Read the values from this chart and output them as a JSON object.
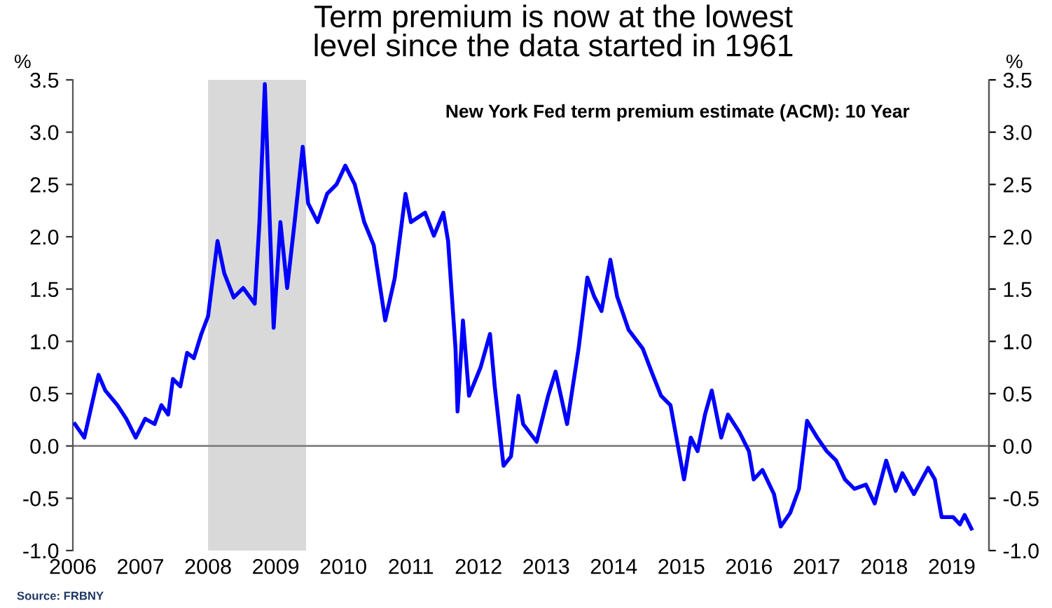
{
  "chart_data": {
    "type": "line",
    "title": "Term premium is now at the lowest\nlevel since the data started in 1961",
    "subtitle": "New York Fed term premium estimate (ACM): 10 Year",
    "ylabel": "%",
    "y2label": "%",
    "annotations": [
      "Source: FRBNY"
    ],
    "x": [
      2006.03,
      2006.17,
      2006.24,
      2006.38,
      2006.48,
      2006.66,
      2006.79,
      2006.93,
      2007.07,
      2007.21,
      2007.31,
      2007.41,
      2007.48,
      2007.59,
      2007.69,
      2007.79,
      2007.9,
      2008.0,
      2008.14,
      2008.24,
      2008.38,
      2008.52,
      2008.69,
      2008.76,
      2008.84,
      2008.88,
      2008.97,
      2009.07,
      2009.17,
      2009.28,
      2009.4,
      2009.48,
      2009.62,
      2009.76,
      2009.9,
      2010.03,
      2010.17,
      2010.31,
      2010.45,
      2010.62,
      2010.76,
      2010.92,
      2011.0,
      2011.21,
      2011.34,
      2011.48,
      2011.55,
      2011.66,
      2011.69,
      2011.77,
      2011.86,
      2012.03,
      2012.17,
      2012.24,
      2012.37,
      2012.48,
      2012.59,
      2012.66,
      2012.86,
      2013.03,
      2013.14,
      2013.31,
      2013.48,
      2013.61,
      2013.71,
      2013.82,
      2013.95,
      2014.05,
      2014.22,
      2014.43,
      2014.56,
      2014.7,
      2014.84,
      2015.04,
      2015.14,
      2015.24,
      2015.35,
      2015.45,
      2015.59,
      2015.69,
      2015.86,
      2016.0,
      2016.07,
      2016.2,
      2016.37,
      2016.47,
      2016.61,
      2016.74,
      2016.86,
      2017.01,
      2017.15,
      2017.29,
      2017.42,
      2017.56,
      2017.73,
      2017.86,
      2018.03,
      2018.17,
      2018.27,
      2018.44,
      2018.65,
      2018.75,
      2018.85,
      2019.02,
      2019.12,
      2019.19,
      2019.29
    ],
    "series": [
      {
        "color": "#0000ff",
        "values": [
          0.21,
          0.08,
          0.28,
          0.68,
          0.53,
          0.39,
          0.26,
          0.08,
          0.26,
          0.21,
          0.39,
          0.3,
          0.64,
          0.57,
          0.89,
          0.84,
          1.07,
          1.24,
          1.96,
          1.65,
          1.42,
          1.51,
          1.36,
          2.14,
          3.46,
          2.72,
          1.13,
          2.14,
          1.51,
          2.14,
          2.86,
          2.32,
          2.14,
          2.41,
          2.5,
          2.68,
          2.5,
          2.14,
          1.92,
          1.2,
          1.6,
          2.41,
          2.14,
          2.23,
          2.01,
          2.23,
          1.96,
          0.93,
          0.33,
          1.2,
          0.48,
          0.75,
          1.07,
          0.57,
          -0.19,
          -0.1,
          0.48,
          0.21,
          0.04,
          0.48,
          0.71,
          0.21,
          0.93,
          1.61,
          1.43,
          1.29,
          1.78,
          1.43,
          1.11,
          0.93,
          0.71,
          0.48,
          0.39,
          -0.32,
          0.08,
          -0.05,
          0.3,
          0.53,
          0.08,
          0.3,
          0.13,
          -0.05,
          -0.32,
          -0.23,
          -0.46,
          -0.77,
          -0.64,
          -0.41,
          0.24,
          0.08,
          -0.05,
          -0.14,
          -0.32,
          -0.41,
          -0.37,
          -0.55,
          -0.14,
          -0.43,
          -0.26,
          -0.46,
          -0.21,
          -0.32,
          -0.68,
          -0.68,
          -0.75,
          -0.66,
          -0.79
        ]
      }
    ],
    "xlim": [
      2006,
      2019.55
    ],
    "xticks": [
      2006,
      2007,
      2008,
      2009,
      2010,
      2011,
      2012,
      2013,
      2014,
      2015,
      2016,
      2017,
      2018,
      2019
    ],
    "ylim": [
      -1.0,
      3.5
    ],
    "yticks": [
      {
        "value": -1.0,
        "label": "-1.0"
      },
      {
        "value": -0.5,
        "label": "-0.5"
      },
      {
        "value": 0,
        "label": "0.0"
      },
      {
        "value": 0.5,
        "label": "0.5"
      },
      {
        "value": 1.0,
        "label": "1.0"
      },
      {
        "value": 1.5,
        "label": "1.5"
      },
      {
        "value": 2.0,
        "label": "2.0"
      },
      {
        "value": 2.5,
        "label": "2.5"
      },
      {
        "value": 3.0,
        "label": "3.0"
      },
      {
        "value": 3.5,
        "label": "3.5"
      }
    ],
    "y2lim": [
      -1.0,
      3.5
    ],
    "y2ticks": [
      {
        "value": -1.0,
        "label": "-1.0"
      },
      {
        "value": -0.5,
        "label": "-0.5"
      },
      {
        "value": 0,
        "label": "0.0"
      },
      {
        "value": 0.5,
        "label": "0.5"
      },
      {
        "value": 1.0,
        "label": "1.0"
      },
      {
        "value": 1.5,
        "label": "1.5"
      },
      {
        "value": 2.0,
        "label": "2.0"
      },
      {
        "value": 2.5,
        "label": "2.5"
      },
      {
        "value": 3.0,
        "label": "3.0"
      },
      {
        "value": 3.5,
        "label": "3.5"
      }
    ],
    "ref_lines": [
      {
        "axis": "y",
        "value": 0,
        "color": "#808080"
      }
    ],
    "bands": [
      {
        "axis": "x",
        "from": 2008.0,
        "to": 2009.45,
        "color": "#d9d9d9"
      }
    ],
    "grid": false,
    "legend": false,
    "marker": "none",
    "line_style": "solid"
  }
}
